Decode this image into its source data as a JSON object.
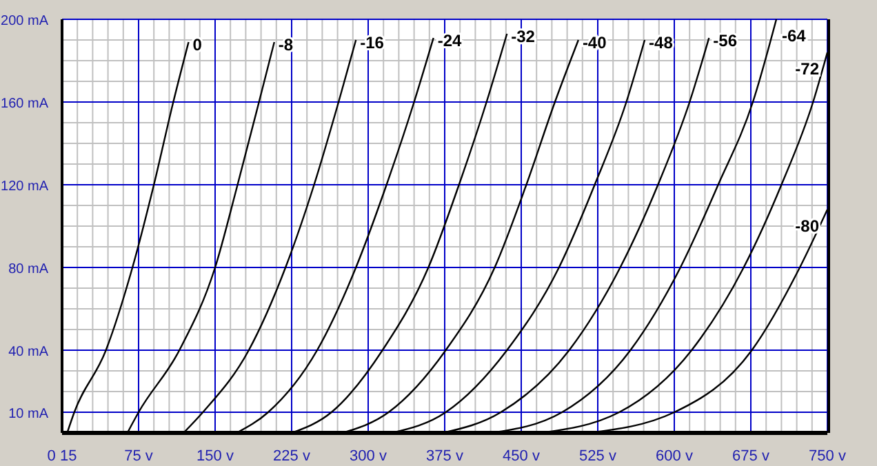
{
  "chart_data": {
    "type": "line",
    "xlim": [
      0,
      750
    ],
    "ylim": [
      0,
      200
    ],
    "xticks": [
      {
        "value": 0,
        "label": "0 15"
      },
      {
        "value": 15,
        "label": null
      },
      {
        "value": 30,
        "label": null
      },
      {
        "value": 45,
        "label": null
      },
      {
        "value": 60,
        "label": null
      },
      {
        "value": 75,
        "label": "75 v"
      },
      {
        "value": 90,
        "label": null
      },
      {
        "value": 105,
        "label": null
      },
      {
        "value": 120,
        "label": null
      },
      {
        "value": 135,
        "label": null
      },
      {
        "value": 150,
        "label": "150 v"
      },
      {
        "value": 165,
        "label": null
      },
      {
        "value": 180,
        "label": null
      },
      {
        "value": 195,
        "label": null
      },
      {
        "value": 210,
        "label": null
      },
      {
        "value": 225,
        "label": "225 v"
      },
      {
        "value": 240,
        "label": null
      },
      {
        "value": 255,
        "label": null
      },
      {
        "value": 270,
        "label": null
      },
      {
        "value": 285,
        "label": null
      },
      {
        "value": 300,
        "label": "300 v"
      },
      {
        "value": 315,
        "label": null
      },
      {
        "value": 330,
        "label": null
      },
      {
        "value": 345,
        "label": null
      },
      {
        "value": 360,
        "label": null
      },
      {
        "value": 375,
        "label": "375 v"
      },
      {
        "value": 390,
        "label": null
      },
      {
        "value": 405,
        "label": null
      },
      {
        "value": 420,
        "label": null
      },
      {
        "value": 435,
        "label": null
      },
      {
        "value": 450,
        "label": "450 v"
      },
      {
        "value": 465,
        "label": null
      },
      {
        "value": 480,
        "label": null
      },
      {
        "value": 495,
        "label": null
      },
      {
        "value": 510,
        "label": null
      },
      {
        "value": 525,
        "label": "525 v"
      },
      {
        "value": 540,
        "label": null
      },
      {
        "value": 555,
        "label": null
      },
      {
        "value": 570,
        "label": null
      },
      {
        "value": 585,
        "label": null
      },
      {
        "value": 600,
        "label": "600 v"
      },
      {
        "value": 615,
        "label": null
      },
      {
        "value": 630,
        "label": null
      },
      {
        "value": 645,
        "label": null
      },
      {
        "value": 660,
        "label": null
      },
      {
        "value": 675,
        "label": "675 v"
      },
      {
        "value": 690,
        "label": null
      },
      {
        "value": 705,
        "label": null
      },
      {
        "value": 720,
        "label": null
      },
      {
        "value": 735,
        "label": null
      },
      {
        "value": 750,
        "label": "750 v"
      }
    ],
    "yticks": [
      {
        "value": 10,
        "label": "10 mA"
      },
      {
        "value": 20,
        "label": null
      },
      {
        "value": 30,
        "label": null
      },
      {
        "value": 40,
        "label": "40 mA"
      },
      {
        "value": 50,
        "label": null
      },
      {
        "value": 60,
        "label": null
      },
      {
        "value": 70,
        "label": null
      },
      {
        "value": 80,
        "label": "80 mA"
      },
      {
        "value": 90,
        "label": null
      },
      {
        "value": 100,
        "label": null
      },
      {
        "value": 110,
        "label": null
      },
      {
        "value": 120,
        "label": "120 mA"
      },
      {
        "value": 130,
        "label": null
      },
      {
        "value": 140,
        "label": null
      },
      {
        "value": 150,
        "label": null
      },
      {
        "value": 160,
        "label": "160 mA"
      },
      {
        "value": 170,
        "label": null
      },
      {
        "value": 180,
        "label": null
      },
      {
        "value": 190,
        "label": null
      },
      {
        "value": 200,
        "label": "200 mA"
      }
    ],
    "grid": true,
    "marker": "none",
    "line_style": "solid",
    "series": [
      {
        "name": "0",
        "color": "#000000",
        "x": [
          5,
          12,
          43,
          69,
          90,
          109,
          124
        ],
        "values": [
          0,
          10,
          40,
          80,
          120,
          160,
          189
        ]
      },
      {
        "name": "-8",
        "color": "#000000",
        "x": [
          64,
          75,
          115,
          150,
          172,
          193,
          208
        ],
        "values": [
          0,
          10,
          40,
          80,
          120,
          160,
          189
        ]
      },
      {
        "name": "-16",
        "color": "#000000",
        "x": [
          119,
          138,
          183,
          219,
          247,
          271,
          288
        ],
        "values": [
          0,
          10,
          40,
          80,
          120,
          160,
          190
        ]
      },
      {
        "name": "-24",
        "color": "#000000",
        "x": [
          171,
          202,
          250,
          288,
          318,
          345,
          364
        ],
        "values": [
          0,
          10,
          40,
          80,
          120,
          160,
          191
        ]
      },
      {
        "name": "-32",
        "color": "#000000",
        "x": [
          225,
          264,
          314,
          359,
          389,
          416,
          436
        ],
        "values": [
          0,
          10,
          40,
          80,
          120,
          160,
          193
        ]
      },
      {
        "name": "-40",
        "color": "#000000",
        "x": [
          275,
          320,
          376,
          424,
          455,
          483,
          506
        ],
        "values": [
          0,
          10,
          40,
          80,
          120,
          160,
          190
        ]
      },
      {
        "name": "-48",
        "color": "#000000",
        "x": [
          323,
          376,
          436,
          487,
          522,
          553,
          571
        ],
        "values": [
          0,
          10,
          40,
          80,
          120,
          160,
          190
        ]
      },
      {
        "name": "-56",
        "color": "#000000",
        "x": [
          373,
          430,
          497,
          547,
          584,
          615,
          634
        ],
        "values": [
          0,
          10,
          40,
          80,
          120,
          160,
          191
        ]
      },
      {
        "name": "-64",
        "color": "#000000",
        "x": [
          420,
          490,
          557,
          606,
          643,
          677,
          700
        ],
        "values": [
          0,
          10,
          40,
          80,
          120,
          160,
          200
        ]
      },
      {
        "name": "-72",
        "color": "#000000",
        "x": [
          468,
          546,
          617,
          668,
          705,
          736,
          750
        ],
        "values": [
          0,
          10,
          40,
          80,
          120,
          160,
          184
        ]
      },
      {
        "name": "-80",
        "color": "#000000",
        "x": [
          515,
          600,
          676,
          723,
          750
        ],
        "values": [
          0,
          10,
          40,
          80,
          108
        ]
      }
    ]
  }
}
